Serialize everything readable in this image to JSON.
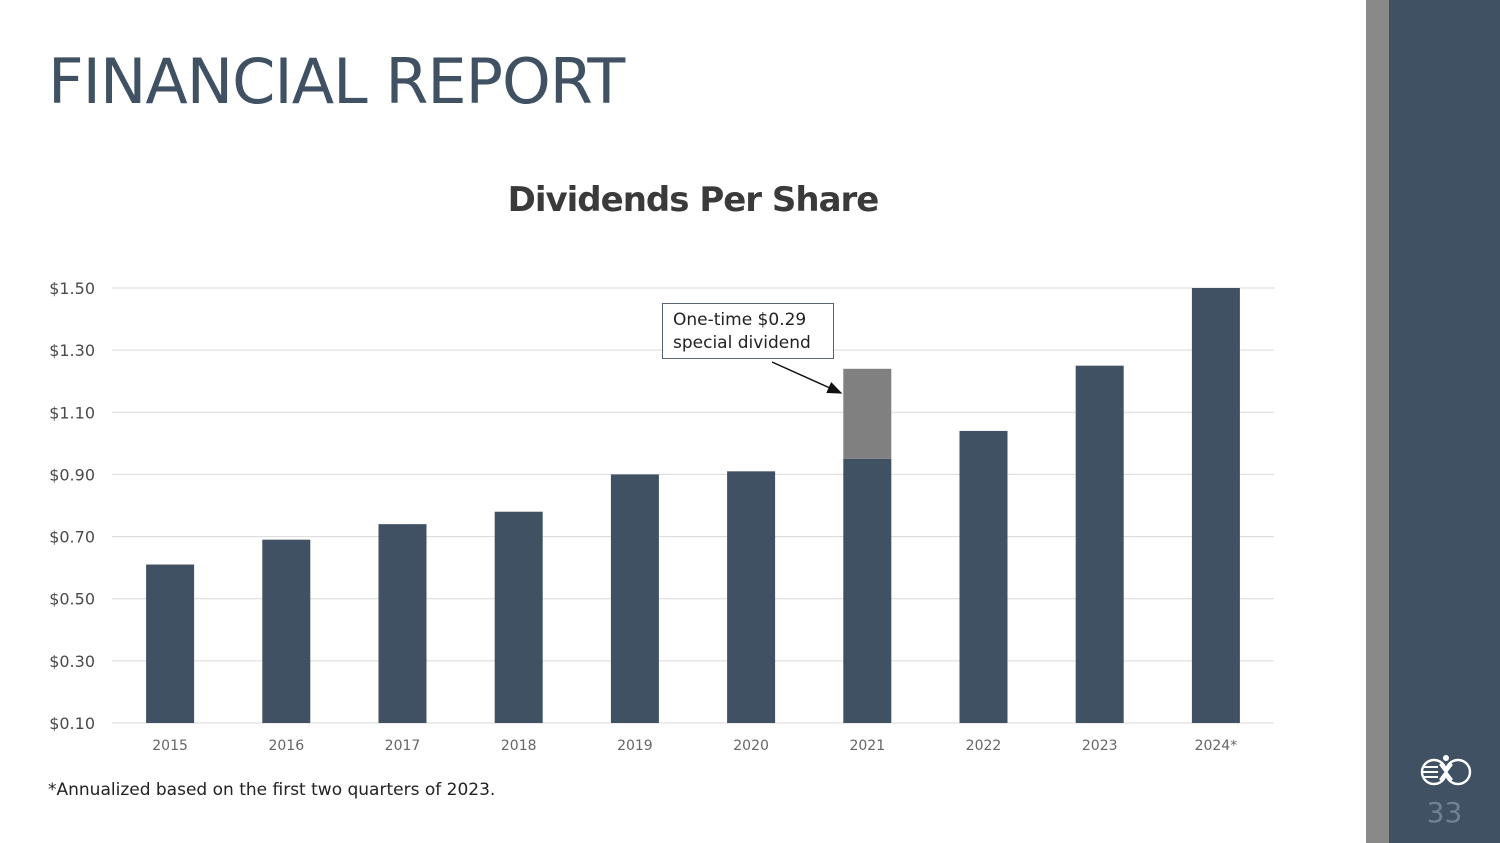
{
  "slide": {
    "title": "FINANCIAL REPORT",
    "footnote": "*Annualized based on the first two quarters of 2023.",
    "page_number": "33"
  },
  "theme": {
    "bar_color": "#3f5163",
    "special_color": "#808080",
    "side_panel_color": "#3f5163",
    "side_stripe_color": "#898989"
  },
  "icons": {
    "logo": "company-logo-icon"
  },
  "annotation": {
    "line1": "One-time $0.29",
    "line2": "special dividend"
  },
  "chart_data": {
    "type": "bar",
    "title": "Dividends Per Share",
    "xlabel": "",
    "ylabel": "",
    "stacked": true,
    "categories": [
      "2015",
      "2016",
      "2017",
      "2018",
      "2019",
      "2020",
      "2021",
      "2022",
      "2023",
      "2024*"
    ],
    "series": [
      {
        "values": [
          0.51,
          0.59,
          0.64,
          0.68,
          0.8,
          0.81,
          0.85,
          0.94,
          1.15,
          1.4
        ]
      },
      {
        "values": [
          0,
          0,
          0,
          0,
          0,
          0,
          0.29,
          0,
          0,
          0
        ]
      }
    ],
    "ylim": [
      0.1,
      1.5
    ],
    "yticks": [
      0.1,
      0.3,
      0.5,
      0.7,
      0.9,
      1.1,
      1.3,
      1.5
    ],
    "ytick_labels": [
      "$0.10",
      "$0.30",
      "$0.50",
      "$0.70",
      "$0.90",
      "$1.10",
      "$1.30",
      "$1.50"
    ],
    "grid": true,
    "legend": "none"
  }
}
